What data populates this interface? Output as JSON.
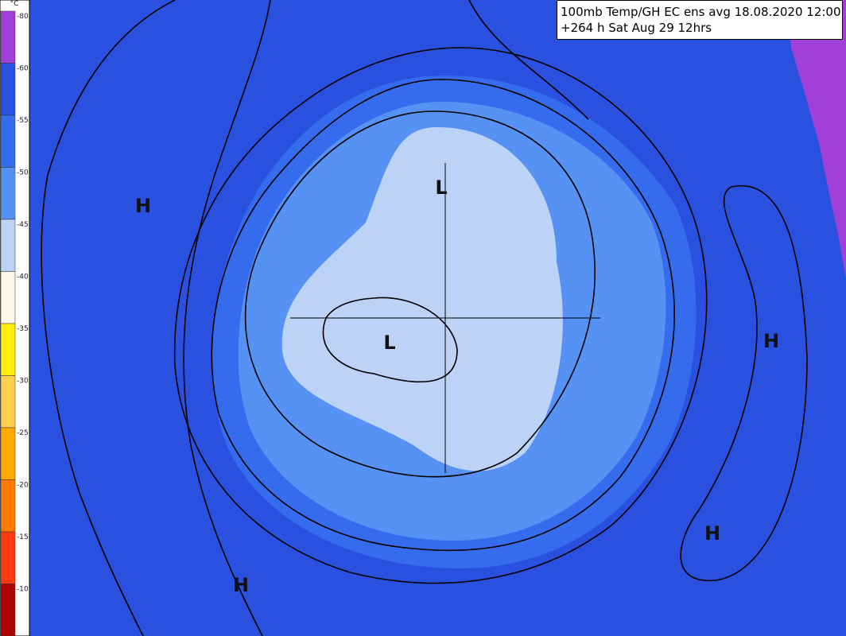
{
  "info": {
    "line1": "100mb Temp/GH  EC ens avg 18.08.2020 12:00",
    "line2": "+264 h Sat Aug 29 12hrs"
  },
  "legend": {
    "unit": "°C",
    "levels": [
      {
        "label": "-80",
        "color": "#a040d8"
      },
      {
        "label": "-60",
        "color": "#2a50e0"
      },
      {
        "label": "-55",
        "color": "#356cee"
      },
      {
        "label": "-50",
        "color": "#5592f4"
      },
      {
        "label": "-45",
        "color": "#bcd2f7"
      },
      {
        "label": "-40",
        "color": "#fff8ea"
      },
      {
        "label": "-35",
        "color": "#ffee10"
      },
      {
        "label": "-30",
        "color": "#ffd050"
      },
      {
        "label": "-25",
        "color": "#ffaa00"
      },
      {
        "label": "-20",
        "color": "#ff7a00"
      },
      {
        "label": "-15",
        "color": "#ff3a10"
      },
      {
        "label": "-10",
        "color": "#b00000"
      }
    ]
  },
  "markers": [
    {
      "text": "H"
    },
    {
      "text": "H"
    },
    {
      "text": "H"
    },
    {
      "text": "H"
    },
    {
      "text": "L"
    },
    {
      "text": "L"
    }
  ]
}
